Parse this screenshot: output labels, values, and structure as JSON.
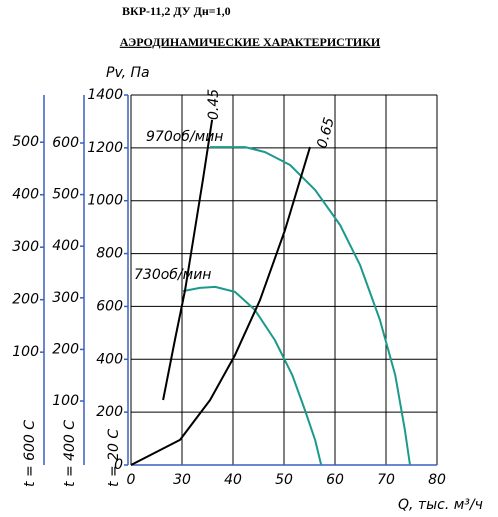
{
  "chart_data": {
    "type": "line",
    "header": "ВКР-11,2 ДУ Дн=1,0",
    "title": "АЭРОДИНАМИЧЕСКИЕ ХАРАКТЕРИСТИКИ",
    "ylabel": "Pv, Па",
    "xlabel": "Q, тыс. м³/ч",
    "xlim": [
      20,
      80
    ],
    "xticks": [
      {
        "value": 20,
        "label": "0"
      },
      30,
      40,
      50,
      60,
      70,
      80
    ],
    "ylim": [
      0,
      1400
    ],
    "yticks": [
      0,
      200,
      400,
      600,
      800,
      1000,
      1200,
      1400
    ],
    "grid": true,
    "axes": [
      {
        "label": "t = 20 С",
        "ylim": [
          0,
          1400
        ],
        "yticks": [
          0,
          200,
          400,
          600,
          800,
          1000,
          1200,
          1400
        ]
      },
      {
        "label": "t = 400 С",
        "ylim": [
          -24,
          693
        ],
        "yticks": [
          100,
          200,
          300,
          400,
          500,
          600
        ]
      },
      {
        "label": "t = 600 С",
        "ylim": [
          -115,
          590
        ],
        "yticks": [
          100,
          200,
          300,
          400,
          500
        ]
      }
    ],
    "series": [
      {
        "name": "970об/мин",
        "color": "#1b9a8c",
        "x": [
          35.5,
          42.4,
          46.3,
          51.2,
          56.1,
          61.0,
          64.9,
          68.8,
          71.8,
          73.7,
          74.7
        ],
        "values": [
          1203,
          1203,
          1184,
          1135,
          1041,
          908,
          757,
          549,
          341,
          132,
          0
        ]
      },
      {
        "name": "730об/мин",
        "color": "#1b9a8c",
        "x": [
          30.2,
          33.5,
          36.5,
          40.4,
          44.3,
          48.2,
          51.6,
          54.1,
          56.1,
          57.3
        ],
        "values": [
          658,
          670,
          674,
          655,
          587,
          473,
          341,
          208,
          95,
          0
        ]
      },
      {
        "name": "0.45",
        "color": "#000000",
        "x": [
          26.3,
          28.6,
          30.6,
          32.5,
          34.1,
          35.9
        ],
        "values": [
          246,
          473,
          662,
          889,
          1079,
          1306
        ]
      },
      {
        "name": "0.65",
        "color": "#000000",
        "x": [
          20,
          29.6,
          35.5,
          40.4,
          45.3,
          50.2,
          55.1
        ],
        "values": [
          0,
          95,
          246,
          416,
          624,
          889,
          1203
        ]
      }
    ]
  }
}
